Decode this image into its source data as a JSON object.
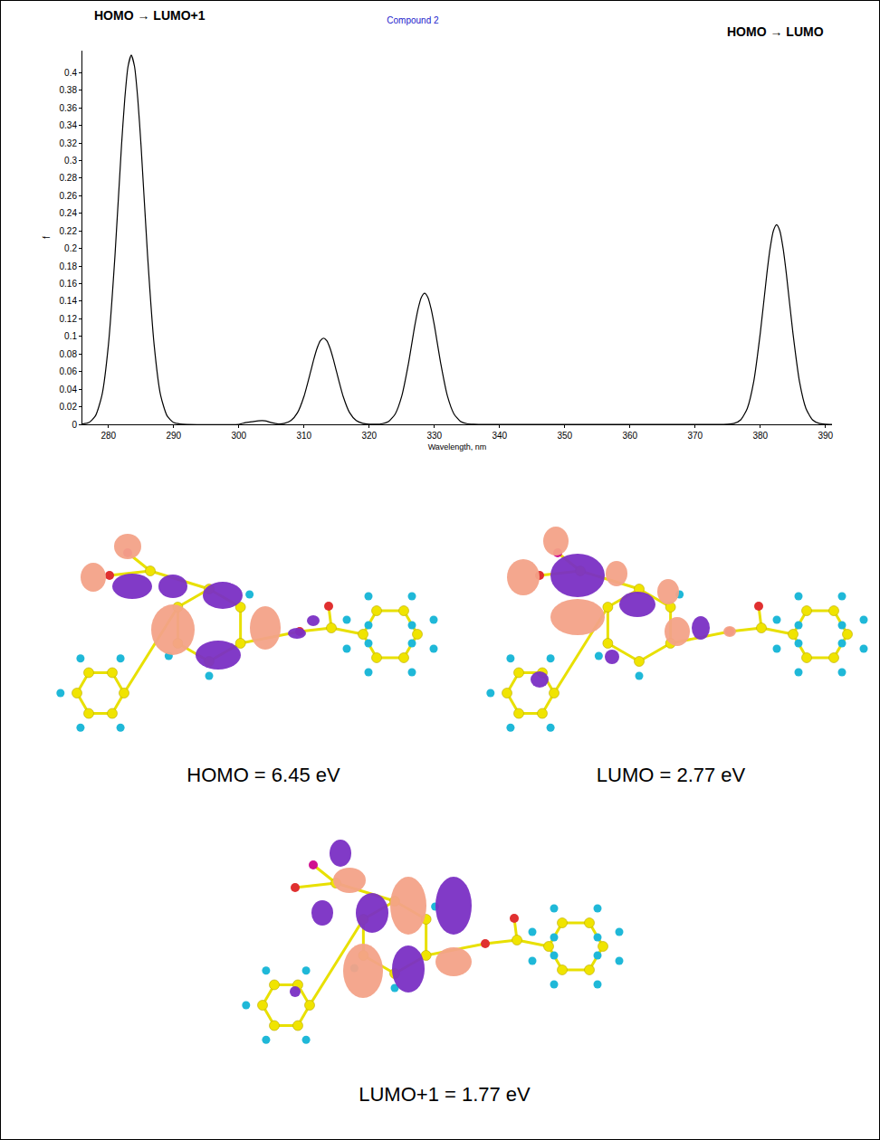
{
  "chart_data": {
    "type": "line",
    "title": "Compound 2",
    "x_label": "Wavelength, nm",
    "y_label": "f",
    "x": [
      276,
      277,
      278,
      279,
      280,
      281,
      282,
      282.5,
      283,
      283.5,
      284,
      284.5,
      285,
      286,
      287,
      288,
      289,
      290,
      291,
      292,
      300,
      301,
      302,
      303,
      304,
      305,
      306,
      307,
      308,
      309,
      310,
      311,
      311.5,
      312,
      312.5,
      313,
      313.5,
      314,
      314.5,
      315,
      316,
      317,
      318,
      319,
      320,
      321,
      322,
      323,
      324,
      325,
      326,
      327,
      327.5,
      328,
      328.5,
      329,
      329.5,
      330,
      331,
      332,
      333,
      334,
      335,
      336,
      337,
      374,
      375,
      376,
      377,
      378,
      379,
      380,
      381,
      381.5,
      382,
      382.5,
      383,
      383.5,
      384,
      385,
      386,
      387,
      388,
      389,
      390,
      391
    ],
    "values": [
      0.0004,
      0.002,
      0.0096,
      0.033,
      0.091,
      0.192,
      0.317,
      0.37,
      0.407,
      0.42,
      0.407,
      0.37,
      0.317,
      0.192,
      0.091,
      0.033,
      0.0096,
      0.002,
      0.0004,
      0,
      0,
      0.002,
      0.003,
      0.004,
      0.004,
      0.002,
      0.0005,
      0.0011,
      0.0043,
      0.0132,
      0.0319,
      0.0595,
      0.074,
      0.0864,
      0.095,
      0.098,
      0.095,
      0.0864,
      0.074,
      0.0595,
      0.0319,
      0.0132,
      0.0043,
      0.0011,
      0.0002,
      0.0001,
      0.0008,
      0.0034,
      0.0119,
      0.0322,
      0.0682,
      0.1125,
      0.1314,
      0.1444,
      0.149,
      0.1444,
      0.1314,
      0.1125,
      0.0682,
      0.0322,
      0.0119,
      0.0034,
      0.0008,
      0.0001,
      0,
      0,
      0.0002,
      0.0012,
      0.0052,
      0.0181,
      0.049,
      0.104,
      0.171,
      0.2,
      0.22,
      0.227,
      0.22,
      0.2,
      0.171,
      0.104,
      0.049,
      0.0181,
      0.0052,
      0.0012,
      0.0002,
      0
    ],
    "color": "#000000",
    "xlim": [
      276,
      391
    ],
    "xticks": [
      280,
      290,
      300,
      310,
      320,
      330,
      340,
      350,
      360,
      370,
      380,
      390
    ],
    "ylim": [
      0,
      0.425
    ],
    "yticks": [
      0,
      0.02,
      0.04,
      0.06,
      0.08,
      0.1,
      0.12,
      0.14,
      0.16,
      0.18,
      0.2,
      0.22,
      0.24,
      0.26,
      0.28,
      0.3,
      0.32,
      0.34,
      0.36,
      0.38,
      0.4
    ],
    "grid": false,
    "annotations": [
      "HOMO → LUMO+1",
      "HOMO → LUMO"
    ]
  },
  "orbitals": [
    {
      "label": "HOMO = 6.45 eV"
    },
    {
      "label": "LUMO = 2.77 eV"
    },
    {
      "label": "LUMO+1 = 1.77 eV"
    }
  ]
}
